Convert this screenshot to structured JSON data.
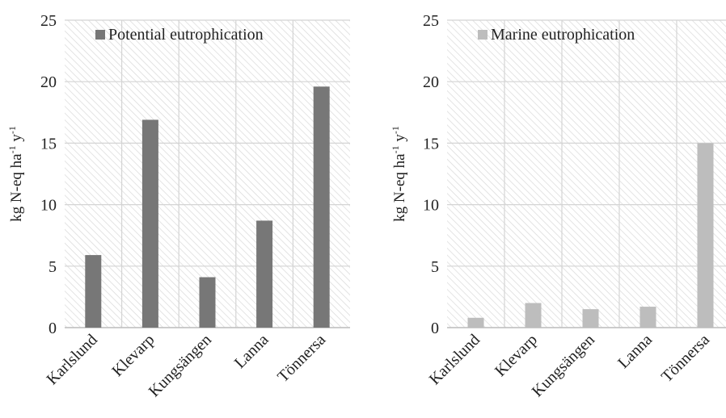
{
  "chart_data": [
    {
      "type": "bar",
      "categories": [
        "Karlslund",
        "Klevarp",
        "Kungsängen",
        "Lanna",
        "Tönnersa"
      ],
      "series": [
        {
          "name": "Potential eutrophication",
          "values": [
            5.9,
            16.9,
            4.1,
            8.7,
            19.6
          ]
        }
      ],
      "ylabel": "kg N-eq ha-1 y-1",
      "ylim": [
        0,
        25
      ],
      "yticks": [
        0,
        5,
        10,
        15,
        20,
        25
      ],
      "grid": true,
      "legend_position": "top-left",
      "bar_color": "#777777"
    },
    {
      "type": "bar",
      "categories": [
        "Karlslund",
        "Klevarp",
        "Kungsängen",
        "Lanna",
        "Tönnersa"
      ],
      "series": [
        {
          "name": "Marine eutrophication",
          "values": [
            0.8,
            2.0,
            1.5,
            1.7,
            15.0
          ]
        }
      ],
      "ylabel": "kg N-eq ha-1 y-1",
      "ylim": [
        0,
        25
      ],
      "yticks": [
        0,
        5,
        10,
        15,
        20,
        25
      ],
      "grid": true,
      "legend_position": "top-left",
      "bar_color": "#bdbdbd"
    }
  ]
}
